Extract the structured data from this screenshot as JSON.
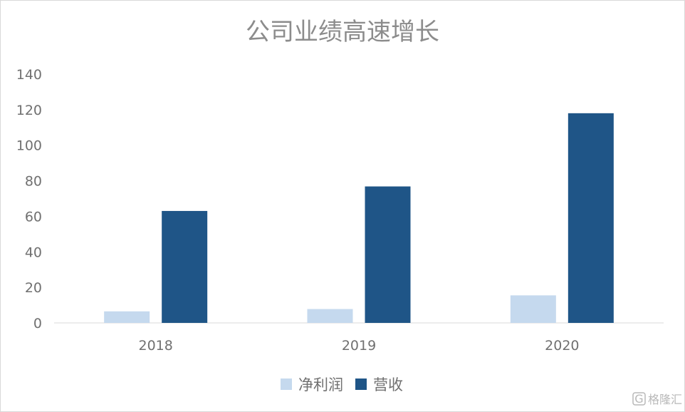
{
  "chart_data": {
    "type": "bar",
    "title": "公司业绩高速增长",
    "categories": [
      "2018",
      "2019",
      "2020"
    ],
    "series": [
      {
        "name": "净利润",
        "color": "#c5d9ee",
        "values": [
          6.5,
          7.8,
          15.5
        ]
      },
      {
        "name": "营收",
        "color": "#1f5587",
        "values": [
          63,
          76.8,
          118
        ]
      }
    ],
    "ylim": [
      0,
      140
    ],
    "yticks": [
      0,
      20,
      40,
      60,
      80,
      100,
      120,
      140
    ],
    "grid": false,
    "legend_position": "bottom"
  },
  "watermark": {
    "text": "格隆汇",
    "badge": "G"
  }
}
